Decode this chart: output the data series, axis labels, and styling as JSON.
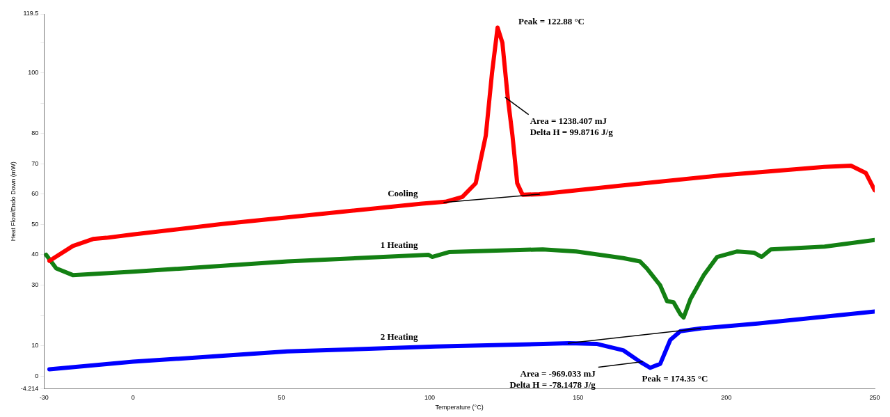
{
  "chart_data": {
    "type": "line",
    "xlabel": "Temperature (°C)",
    "ylabel": "Heat Flow/Endo Down (mW)",
    "xlim": [
      -30,
      250
    ],
    "xticks": [
      -30,
      0,
      50,
      100,
      150,
      200,
      250
    ],
    "ylim": [
      -4.214,
      119.5
    ],
    "yticks": [
      -4.214,
      0,
      10,
      {
        "value": 20,
        "label": null
      },
      30,
      40,
      50,
      60,
      70,
      80,
      {
        "value": 90,
        "label": null
      },
      100,
      {
        "value": 110,
        "label": null
      },
      119.5
    ],
    "grid": false,
    "legend": false,
    "marker": "none",
    "line_style": "solid",
    "series": [
      {
        "name": "Cooling",
        "color": "#ff0000",
        "x": [
          -28.2,
          -20.3,
          -13.5,
          -9,
          0,
          29.5,
          63.4,
          97.4,
          105.3,
          111,
          115.5,
          118.9,
          121,
          122.88,
          124.5,
          126.3,
          127.9,
          129.5,
          131.3,
          137,
          165.2,
          199.2,
          233,
          242,
          247,
          250
        ],
        "values": [
          38,
          42.9,
          45.2,
          45.6,
          46.7,
          50.1,
          53.5,
          56.9,
          57.5,
          59.1,
          63.6,
          79.3,
          100,
          115,
          110,
          92,
          79.3,
          63.6,
          59.8,
          60,
          62.9,
          66.3,
          69,
          69.4,
          67,
          61.3
        ]
      },
      {
        "name": "1 Heating",
        "color": "#138013",
        "x": [
          -29.3,
          -25.9,
          -20.3,
          0,
          52,
          99.6,
          100.8,
          106.5,
          138.1,
          149.4,
          165.2,
          170.9,
          173.2,
          177.7,
          180,
          182.2,
          184.5,
          185.6,
          187.9,
          192.4,
          196.9,
          203.7,
          209.3,
          211.9,
          215,
          233.1,
          250
        ],
        "values": [
          40,
          35.5,
          33.3,
          34.4,
          37.8,
          40,
          39.3,
          40.9,
          41.8,
          41.1,
          38.9,
          37.8,
          35.5,
          29.9,
          24.7,
          24.3,
          20.4,
          19.3,
          25.4,
          33.3,
          39.3,
          41.1,
          40.7,
          39.3,
          41.8,
          42.7,
          44.9
        ]
      },
      {
        "name": "2 Heating",
        "color": "#0000ff",
        "x": [
          -28.2,
          0,
          52,
          101.9,
          147.1,
          156.2,
          165.2,
          170.9,
          174.35,
          177.7,
          181.1,
          184.5,
          191.3,
          210.5,
          250
        ],
        "values": [
          2.2,
          4.7,
          8.1,
          9.7,
          10.8,
          10.6,
          8.5,
          4.7,
          2.7,
          4,
          11.9,
          14.8,
          15.7,
          17.3,
          21.3
        ]
      },
      {
        "color": "#000000",
        "x": [
          104.8,
          137
        ],
        "values": [
          57.3,
          60
        ]
      },
      {
        "color": "#000000",
        "x": [
          146.7,
          191.3
        ],
        "values": [
          10.8,
          15.7
        ]
      }
    ],
    "annotations": [
      {
        "text": "Peak = 122.88 °C",
        "x": 122.88,
        "y": 115
      },
      {
        "text": "Area = 1238.407 mJ\nDelta H = 99.8716 J/g",
        "x": 126.3,
        "y": 92
      },
      {
        "text": "Area = -969.033 mJ\nDelta H = -78.1478 J/g",
        "x": 170.9,
        "y": 4.7
      },
      {
        "text": "Peak = 174.35 °C",
        "x": 174.35,
        "y": 2.7
      }
    ]
  }
}
